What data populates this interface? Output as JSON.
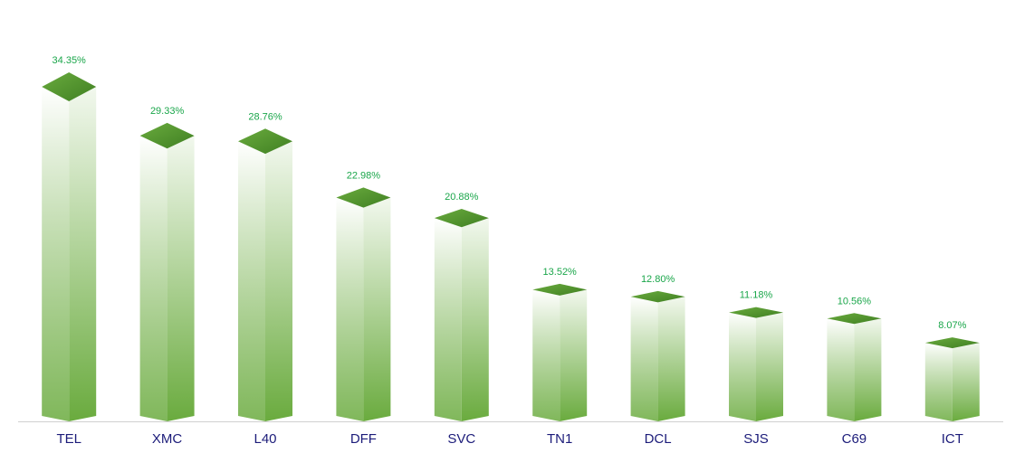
{
  "chart_data": {
    "type": "bar",
    "categories": [
      "TEL",
      "XMC",
      "L40",
      "DFF",
      "SVC",
      "TN1",
      "DCL",
      "SJS",
      "C69",
      "ICT"
    ],
    "values": [
      34.35,
      29.33,
      28.76,
      22.98,
      20.88,
      13.52,
      12.8,
      11.18,
      10.56,
      8.07
    ],
    "value_labels": [
      "34.35%",
      "29.33%",
      "28.76%",
      "22.98%",
      "20.88%",
      "13.52%",
      "12.80%",
      "11.18%",
      "10.56%",
      "8.07%"
    ],
    "color": "#6aab3e"
  }
}
